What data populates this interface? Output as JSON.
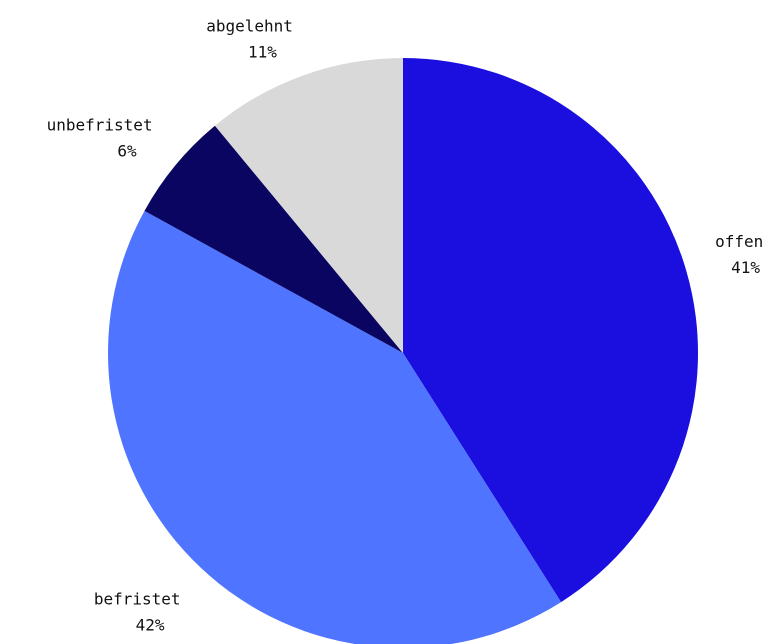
{
  "chart_data": {
    "type": "pie",
    "categories": [
      "offen",
      "befristet",
      "unbefristet",
      "abgelehnt"
    ],
    "values": [
      41,
      42,
      6,
      11
    ],
    "value_labels": [
      "41%",
      "42%",
      "6%",
      "11%"
    ],
    "colors": [
      "#1a0fdf",
      "#4f74ff",
      "#0a0560",
      "#d9d9d9"
    ]
  }
}
